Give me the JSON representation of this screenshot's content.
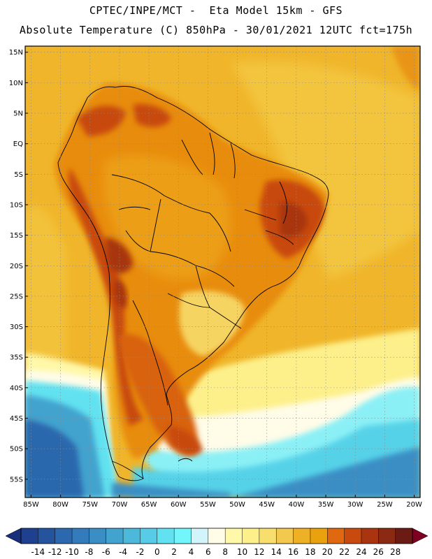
{
  "title_line1": "CPTEC/INPE/MCT -  Eta Model 15km - GFS",
  "title_line2": "Absolute Temperature (C) 850hPa - 30/01/2021 12UTC fct=175h",
  "map": {
    "lon_range": [
      -86,
      -19
    ],
    "lat_range": [
      -58,
      16
    ],
    "lat_ticks": [
      {
        "value": 15,
        "label": "15N"
      },
      {
        "value": 10,
        "label": "10N"
      },
      {
        "value": 5,
        "label": "5N"
      },
      {
        "value": 0,
        "label": "EQ"
      },
      {
        "value": -5,
        "label": "5S"
      },
      {
        "value": -10,
        "label": "10S"
      },
      {
        "value": -15,
        "label": "15S"
      },
      {
        "value": -20,
        "label": "20S"
      },
      {
        "value": -25,
        "label": "25S"
      },
      {
        "value": -30,
        "label": "30S"
      },
      {
        "value": -35,
        "label": "35S"
      },
      {
        "value": -40,
        "label": "40S"
      },
      {
        "value": -45,
        "label": "45S"
      },
      {
        "value": -50,
        "label": "50S"
      },
      {
        "value": -55,
        "label": "55S"
      }
    ],
    "lon_ticks": [
      {
        "value": -85,
        "label": "85W"
      },
      {
        "value": -80,
        "label": "80W"
      },
      {
        "value": -75,
        "label": "75W"
      },
      {
        "value": -70,
        "label": "70W"
      },
      {
        "value": -65,
        "label": "65W"
      },
      {
        "value": -60,
        "label": "60W"
      },
      {
        "value": -55,
        "label": "55W"
      },
      {
        "value": -50,
        "label": "50W"
      },
      {
        "value": -45,
        "label": "45W"
      },
      {
        "value": -40,
        "label": "40W"
      },
      {
        "value": -35,
        "label": "35W"
      },
      {
        "value": -30,
        "label": "30W"
      },
      {
        "value": -25,
        "label": "25W"
      },
      {
        "value": -20,
        "label": "20W"
      }
    ]
  },
  "colorbar": {
    "labels": [
      "-14",
      "-12",
      "-10",
      "-8",
      "-6",
      "-4",
      "-2",
      "0",
      "2",
      "4",
      "6",
      "8",
      "10",
      "12",
      "14",
      "16",
      "18",
      "20",
      "22",
      "24",
      "26",
      "28"
    ],
    "colors": [
      "#1f3f8f",
      "#24549e",
      "#2b68ad",
      "#337bbb",
      "#3a8ec4",
      "#42a3cf",
      "#4cb8da",
      "#58cce6",
      "#62e2f0",
      "#72f5fb",
      "#d2f4fb",
      "#fffce8",
      "#fff8a8",
      "#fdf08a",
      "#f8de6c",
      "#f2c84e",
      "#eeb126",
      "#e9a10e",
      "#e0680f",
      "#c84a0f",
      "#a83510",
      "#8a2a12",
      "#6b1b14"
    ],
    "under_color": "#1a2f7a",
    "over_color": "#7d0022"
  }
}
